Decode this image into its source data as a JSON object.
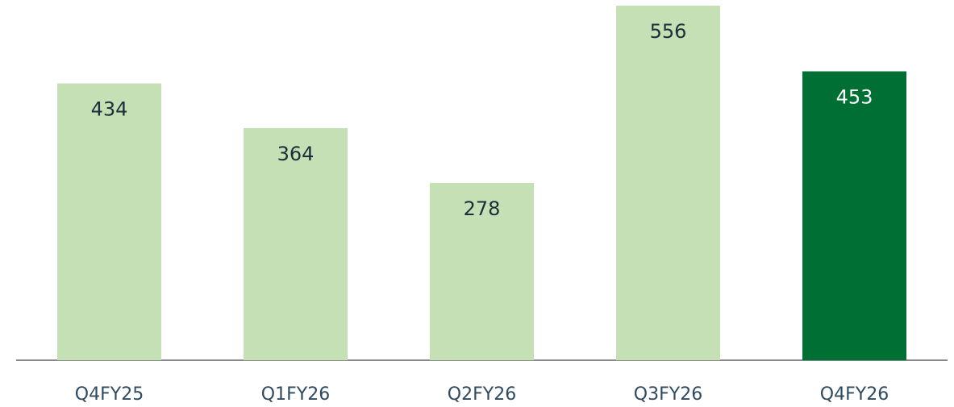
{
  "chart_data": {
    "type": "bar",
    "categories": [
      "Q4FY25",
      "Q1FY26",
      "Q2FY26",
      "Q3FY26",
      "Q4FY26"
    ],
    "values": [
      434,
      364,
      278,
      556,
      453
    ],
    "colors": [
      "#c5e0b4",
      "#c5e0b4",
      "#c5e0b4",
      "#c5e0b4",
      "#006f33"
    ]
  }
}
